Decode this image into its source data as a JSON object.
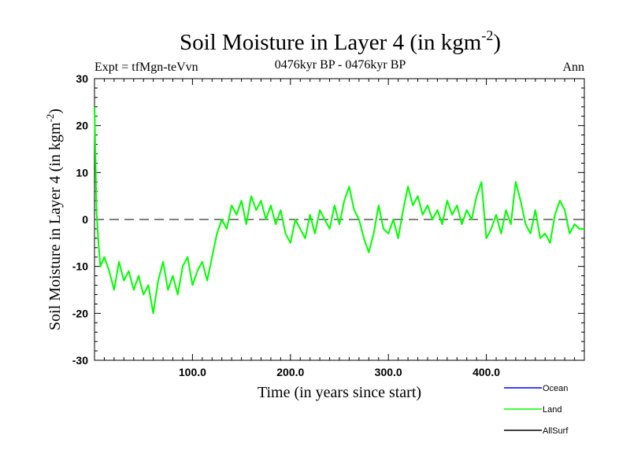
{
  "chart_data": {
    "type": "line",
    "title": "Soil Moisture in Layer 4 (in kgm",
    "title_superscript": "-2",
    "title_close": ")",
    "subtitle": "0476kyr BP - 0476kyr BP",
    "left_label": "Expt = tfMgn-teVvn",
    "right_label": "Ann",
    "xlabel": "Time (in years since start)",
    "ylabel": "Soil Moisture in Layer 4 (in kgm",
    "ylabel_superscript": "-2",
    "ylabel_close": ")",
    "xlim": [
      0,
      500
    ],
    "ylim": [
      -30,
      30
    ],
    "x_ticks": [
      100,
      200,
      300,
      400
    ],
    "x_tick_labels": [
      "100.0",
      "200.0",
      "300.0",
      "400.0"
    ],
    "y_ticks": [
      -30,
      -20,
      -10,
      0,
      10,
      20,
      30
    ],
    "y_tick_labels": [
      "-30",
      "-20",
      "-10",
      "0",
      "10",
      "20",
      "30"
    ],
    "zero_line": true,
    "legend": {
      "placement": "bottom-right",
      "entries": [
        {
          "name": "Ocean",
          "color": "#0000ff"
        },
        {
          "name": "Land",
          "color": "#00ff00"
        },
        {
          "name": "AllSurf",
          "color": "#000000"
        }
      ]
    },
    "series": [
      {
        "name": "Land",
        "color": "#00ff00",
        "x": [
          0,
          2,
          4,
          6,
          10,
          15,
          20,
          25,
          30,
          35,
          40,
          45,
          50,
          55,
          60,
          65,
          70,
          75,
          80,
          85,
          90,
          95,
          100,
          105,
          110,
          115,
          120,
          125,
          130,
          135,
          140,
          145,
          150,
          155,
          160,
          165,
          170,
          175,
          180,
          185,
          190,
          195,
          200,
          205,
          210,
          215,
          220,
          225,
          230,
          235,
          240,
          245,
          250,
          255,
          260,
          265,
          270,
          275,
          280,
          285,
          290,
          295,
          300,
          305,
          310,
          315,
          320,
          325,
          330,
          335,
          340,
          345,
          350,
          355,
          360,
          365,
          370,
          375,
          380,
          385,
          390,
          395,
          400,
          405,
          410,
          415,
          420,
          425,
          430,
          435,
          440,
          445,
          450,
          455,
          460,
          465,
          470,
          475,
          480,
          485,
          490,
          495,
          500
        ],
        "values": [
          24,
          2,
          -5,
          -10,
          -8,
          -11,
          -15,
          -9,
          -13,
          -11,
          -15,
          -12,
          -16,
          -14,
          -20,
          -13,
          -9,
          -15,
          -12,
          -16,
          -10,
          -8,
          -14,
          -11,
          -9,
          -13,
          -8,
          -3,
          0,
          -2,
          3,
          1,
          4,
          -1,
          5,
          2,
          4,
          0,
          3,
          -1,
          2,
          -3,
          -5,
          0,
          -2,
          -4,
          1,
          -3,
          2,
          0,
          -2,
          3,
          -1,
          4,
          7,
          2,
          0,
          -4,
          -7,
          -3,
          3,
          -2,
          -3,
          0,
          -4,
          2,
          7,
          3,
          5,
          1,
          3,
          0,
          2,
          -1,
          4,
          1,
          3,
          -1,
          2,
          0,
          5,
          8,
          -4,
          -2,
          1,
          -3,
          2,
          -1,
          8,
          4,
          -1,
          -3,
          2,
          -4,
          -3,
          -5,
          1,
          4,
          2,
          -3,
          -1,
          -2,
          -2
        ]
      }
    ]
  }
}
